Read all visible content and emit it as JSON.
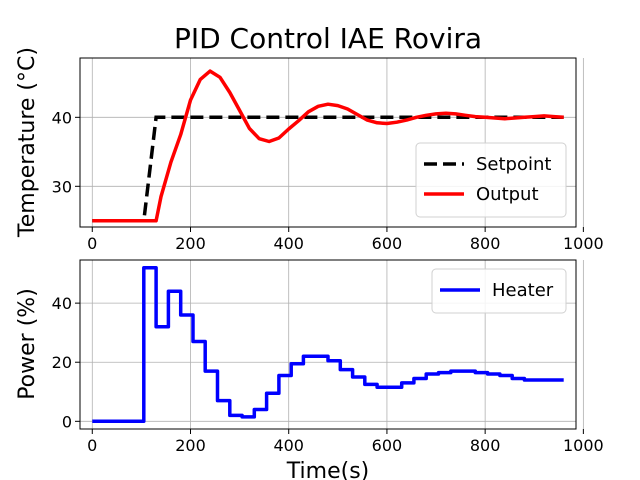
{
  "figure": {
    "background": "#ffffff"
  },
  "chart_data": [
    {
      "type": "line",
      "title": "PID Control IAE Rovira",
      "xlabel": "",
      "ylabel": "Temperature (°C)",
      "xlim": [
        -25,
        985
      ],
      "ylim": [
        24.1,
        48.6
      ],
      "xticks": [
        0,
        200,
        400,
        600,
        800,
        1000
      ],
      "yticks": [
        30,
        40
      ],
      "grid": true,
      "legend": "lower-right",
      "series": [
        {
          "name": "Setpoint",
          "color": "#000000",
          "style": "dashed",
          "x": [
            0,
            105,
            130,
            960
          ],
          "y": [
            25,
            25,
            40,
            40
          ]
        },
        {
          "name": "Output",
          "color": "#ff0000",
          "style": "solid",
          "x": [
            0,
            20,
            40,
            60,
            80,
            100,
            120,
            130,
            140,
            160,
            180,
            200,
            220,
            240,
            260,
            280,
            300,
            320,
            340,
            360,
            380,
            400,
            420,
            440,
            460,
            480,
            500,
            520,
            540,
            560,
            580,
            600,
            620,
            640,
            660,
            680,
            700,
            720,
            740,
            760,
            780,
            800,
            820,
            840,
            860,
            880,
            900,
            920,
            940,
            960
          ],
          "y": [
            25,
            25,
            25,
            25,
            25,
            25,
            25,
            25,
            28.5,
            33.5,
            37.5,
            42.5,
            45.5,
            46.7,
            45.8,
            43.6,
            41.0,
            38.4,
            36.9,
            36.5,
            37.0,
            38.3,
            39.5,
            40.8,
            41.6,
            41.9,
            41.7,
            41.2,
            40.4,
            39.6,
            39.2,
            39.1,
            39.3,
            39.6,
            40.0,
            40.3,
            40.5,
            40.6,
            40.5,
            40.3,
            40.1,
            40.0,
            39.9,
            39.8,
            39.9,
            40.0,
            40.1,
            40.2,
            40.1,
            40.0
          ]
        }
      ]
    },
    {
      "type": "line",
      "title": "",
      "xlabel": "Time(s)",
      "ylabel": "Power (%)",
      "xlim": [
        -25,
        985
      ],
      "ylim": [
        -2.6,
        54.6
      ],
      "xticks": [
        0,
        200,
        400,
        600,
        800,
        1000
      ],
      "yticks": [
        0,
        20,
        40
      ],
      "grid": true,
      "legend": "upper-right",
      "series": [
        {
          "name": "Heater",
          "color": "#0000ff",
          "style": "steps-post",
          "x": [
            0,
            105,
            130,
            155,
            180,
            205,
            230,
            255,
            280,
            305,
            330,
            355,
            380,
            405,
            430,
            455,
            480,
            505,
            530,
            555,
            580,
            605,
            630,
            655,
            680,
            705,
            730,
            755,
            780,
            805,
            830,
            855,
            880,
            905,
            930,
            960
          ],
          "y": [
            0,
            52,
            32,
            44,
            36,
            27,
            17,
            7,
            2,
            1.5,
            4,
            9.5,
            15.5,
            19.5,
            22,
            22,
            20.5,
            17.5,
            15,
            12.5,
            11.5,
            11.5,
            13,
            14.5,
            16,
            16.5,
            17,
            17,
            16.5,
            16,
            15.5,
            14.5,
            14,
            14,
            14,
            14
          ]
        }
      ]
    }
  ]
}
